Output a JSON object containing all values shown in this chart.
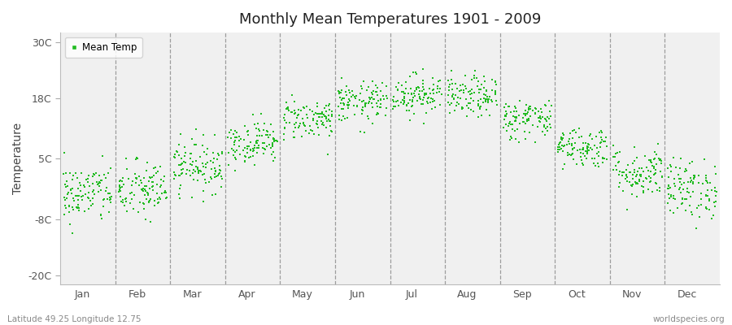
{
  "title": "Monthly Mean Temperatures 1901 - 2009",
  "ylabel": "Temperature",
  "yticks": [
    -20,
    -8,
    5,
    18,
    30
  ],
  "ytick_labels": [
    "-20C",
    "-8C",
    "5C",
    "18C",
    "30C"
  ],
  "ylim": [
    -22,
    32
  ],
  "months": [
    "Jan",
    "Feb",
    "Mar",
    "Apr",
    "May",
    "Jun",
    "Jul",
    "Aug",
    "Sep",
    "Oct",
    "Nov",
    "Dec"
  ],
  "dot_color": "#22bb22",
  "fig_bg_color": "#ffffff",
  "plot_bg_color": "#f0f0f0",
  "legend_label": "Mean Temp",
  "bottom_left_text": "Latitude 49.25 Longitude 12.75",
  "bottom_right_text": "worldspecies.org",
  "n_years": 109,
  "mean_temps": [
    -2.5,
    -1.8,
    3.5,
    8.5,
    13.5,
    17.0,
    18.8,
    18.2,
    13.5,
    7.5,
    2.0,
    -1.5
  ],
  "std_temps": [
    3.2,
    3.2,
    2.8,
    2.3,
    2.2,
    2.2,
    2.2,
    2.2,
    2.2,
    2.2,
    2.8,
    3.2
  ]
}
